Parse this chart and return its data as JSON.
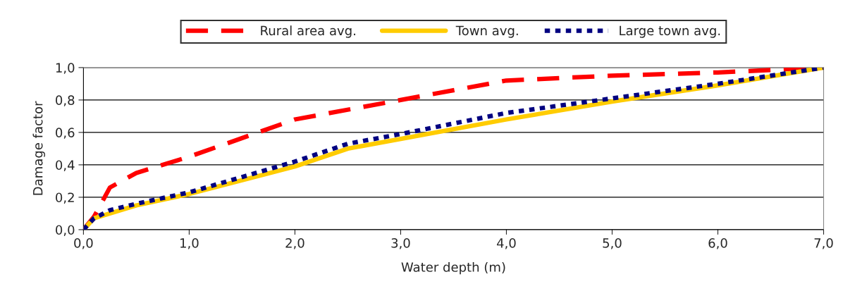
{
  "chart_data": {
    "type": "line",
    "xlabel": "Water depth (m)",
    "ylabel": "Damage factor",
    "xlim": [
      0,
      7
    ],
    "ylim": [
      0,
      1
    ],
    "xticks": [
      {
        "value": 0,
        "label": "0,0"
      },
      {
        "value": 1,
        "label": "1,0"
      },
      {
        "value": 2,
        "label": "2,0"
      },
      {
        "value": 3,
        "label": "3,0"
      },
      {
        "value": 4,
        "label": "4,0"
      },
      {
        "value": 5,
        "label": "5,0"
      },
      {
        "value": 6,
        "label": "6,0"
      },
      {
        "value": 7,
        "label": "7,0"
      }
    ],
    "yticks": [
      {
        "value": 0,
        "label": "0,0"
      },
      {
        "value": 0.2,
        "label": "0,2"
      },
      {
        "value": 0.4,
        "label": "0,4"
      },
      {
        "value": 0.6,
        "label": "0,6"
      },
      {
        "value": 0.8,
        "label": "0,8"
      },
      {
        "value": 1,
        "label": "1,0"
      }
    ],
    "grid": "y",
    "legend": "top",
    "marker": "none",
    "series": [
      {
        "name": "Rural area avg.",
        "color": "#ff0000",
        "line_style": "dashed",
        "x": [
          0,
          0.1,
          0.25,
          0.5,
          1,
          2,
          3,
          4,
          5,
          6,
          7
        ],
        "values": [
          0,
          0.08,
          0.26,
          0.35,
          0.45,
          0.68,
          0.8,
          0.92,
          0.95,
          0.97,
          1.0
        ]
      },
      {
        "name": "Town avg.",
        "color": "#ffcc00",
        "line_style": "solid",
        "x": [
          0,
          0.1,
          0.5,
          1,
          2,
          2.5,
          3,
          4,
          5,
          6,
          7
        ],
        "values": [
          0,
          0.07,
          0.15,
          0.22,
          0.39,
          0.5,
          0.56,
          0.68,
          0.79,
          0.89,
          1.0
        ]
      },
      {
        "name": "Large town avg.",
        "color": "#000080",
        "line_style": "dotted",
        "x": [
          0,
          0.1,
          0.25,
          0.5,
          1,
          2,
          2.5,
          3,
          4,
          5,
          6,
          7
        ],
        "values": [
          0,
          0.07,
          0.12,
          0.16,
          0.23,
          0.42,
          0.53,
          0.59,
          0.72,
          0.81,
          0.9,
          1.0
        ]
      }
    ]
  }
}
